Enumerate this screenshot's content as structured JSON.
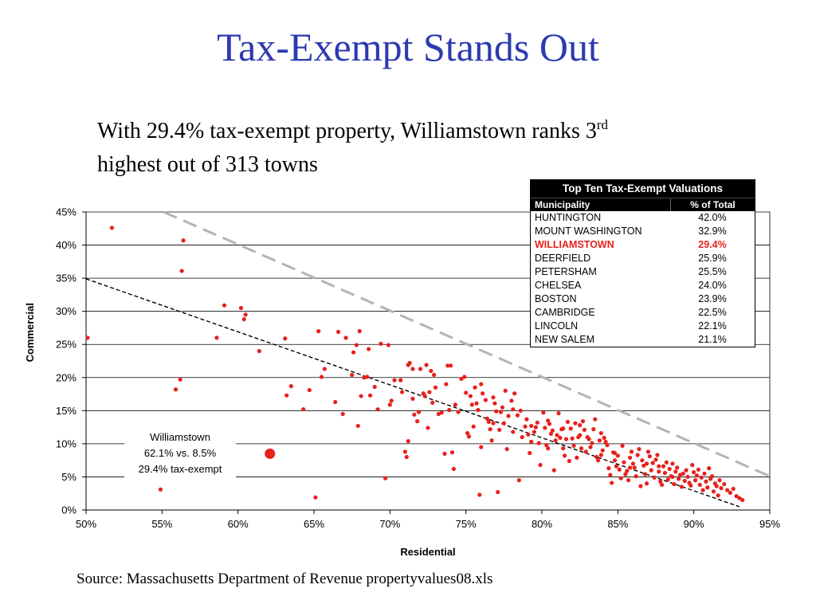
{
  "slide": {
    "title": "Tax-Exempt Stands Out",
    "subtitle_line1": "With 29.4% tax-exempt property, Williamstown ranks 3",
    "subtitle_sup": "rd",
    "subtitle_line2": "highest out of 313 towns",
    "source": "Source: Massachusetts Department of Revenue propertyvalues08.xls"
  },
  "table": {
    "title": "Top Ten Tax-Exempt Valuations",
    "headers": [
      "Municipality",
      "% of Total"
    ],
    "rows": [
      {
        "name": "HUNTINGTON",
        "value": "42.0%"
      },
      {
        "name": "MOUNT WASHINGTON",
        "value": "32.9%"
      },
      {
        "name": "WILLIAMSTOWN",
        "value": "29.4%",
        "highlight": true
      },
      {
        "name": "DEERFIELD",
        "value": "25.9%"
      },
      {
        "name": "PETERSHAM",
        "value": "25.5%"
      },
      {
        "name": "CHELSEA",
        "value": "24.0%"
      },
      {
        "name": "BOSTON",
        "value": "23.9%"
      },
      {
        "name": "CAMBRIDGE",
        "value": "22.5%"
      },
      {
        "name": "LINCOLN",
        "value": "22.1%"
      },
      {
        "name": "NEW SALEM",
        "value": "21.1%"
      }
    ]
  },
  "chart_data": {
    "type": "scatter",
    "xlabel": "Residential",
    "ylabel": "Commercial",
    "xlim": [
      0.5,
      0.95
    ],
    "ylim": [
      0,
      0.45
    ],
    "x_ticks": [
      "50%",
      "55%",
      "60%",
      "65%",
      "70%",
      "75%",
      "80%",
      "85%",
      "90%",
      "95%"
    ],
    "y_ticks": [
      "0%",
      "5%",
      "10%",
      "15%",
      "20%",
      "25%",
      "30%",
      "35%",
      "40%",
      "45%"
    ],
    "grid": "horizontal",
    "point_color": "#e8201c",
    "lines": [
      {
        "style": "dashed-black",
        "from": [
          0.5,
          0.349
        ],
        "to": [
          0.93,
          0.005
        ]
      },
      {
        "style": "dashed-gray",
        "from": [
          0.551,
          0.45
        ],
        "to": [
          0.951,
          0.05
        ]
      }
    ],
    "highlight": {
      "x": 0.621,
      "y": 0.085,
      "label_lines": [
        "Williamstown",
        "62.1% vs. 8.5%",
        "29.4% tax-exempt"
      ]
    },
    "points": [
      [
        0.501,
        0.26
      ],
      [
        0.517,
        0.426
      ],
      [
        0.549,
        0.031
      ],
      [
        0.559,
        0.182
      ],
      [
        0.562,
        0.197
      ],
      [
        0.563,
        0.361
      ],
      [
        0.564,
        0.407
      ],
      [
        0.586,
        0.26
      ],
      [
        0.591,
        0.309
      ],
      [
        0.602,
        0.305
      ],
      [
        0.604,
        0.288
      ],
      [
        0.605,
        0.295
      ],
      [
        0.614,
        0.24
      ],
      [
        0.631,
        0.259
      ],
      [
        0.632,
        0.173
      ],
      [
        0.635,
        0.187
      ],
      [
        0.643,
        0.152
      ],
      [
        0.647,
        0.181
      ],
      [
        0.651,
        0.019
      ],
      [
        0.653,
        0.27
      ],
      [
        0.655,
        0.201
      ],
      [
        0.657,
        0.213
      ],
      [
        0.666,
        0.269
      ],
      [
        0.669,
        0.145
      ],
      [
        0.671,
        0.26
      ],
      [
        0.676,
        0.238
      ],
      [
        0.678,
        0.249
      ],
      [
        0.679,
        0.127
      ],
      [
        0.68,
        0.27
      ],
      [
        0.681,
        0.172
      ],
      [
        0.683,
        0.2
      ],
      [
        0.685,
        0.201
      ],
      [
        0.686,
        0.243
      ],
      [
        0.687,
        0.173
      ],
      [
        0.692,
        0.152
      ],
      [
        0.694,
        0.251
      ],
      [
        0.697,
        0.048
      ],
      [
        0.699,
        0.249
      ],
      [
        0.701,
        0.165
      ],
      [
        0.703,
        0.196
      ],
      [
        0.707,
        0.196
      ],
      [
        0.708,
        0.178
      ],
      [
        0.71,
        0.088
      ],
      [
        0.711,
        0.08
      ],
      [
        0.712,
        0.104
      ],
      [
        0.712,
        0.219
      ],
      [
        0.713,
        0.222
      ],
      [
        0.715,
        0.213
      ],
      [
        0.716,
        0.144
      ],
      [
        0.718,
        0.134
      ],
      [
        0.719,
        0.148
      ],
      [
        0.72,
        0.213
      ],
      [
        0.722,
        0.176
      ],
      [
        0.723,
        0.172
      ],
      [
        0.724,
        0.219
      ],
      [
        0.725,
        0.124
      ],
      [
        0.726,
        0.178
      ],
      [
        0.727,
        0.21
      ],
      [
        0.729,
        0.204
      ],
      [
        0.73,
        0.185
      ],
      [
        0.732,
        0.145
      ],
      [
        0.734,
        0.147
      ],
      [
        0.736,
        0.085
      ],
      [
        0.737,
        0.19
      ],
      [
        0.738,
        0.218
      ],
      [
        0.74,
        0.218
      ],
      [
        0.741,
        0.087
      ],
      [
        0.742,
        0.062
      ],
      [
        0.743,
        0.159
      ],
      [
        0.745,
        0.148
      ],
      [
        0.747,
        0.198
      ],
      [
        0.749,
        0.201
      ],
      [
        0.75,
        0.177
      ],
      [
        0.751,
        0.116
      ],
      [
        0.752,
        0.111
      ],
      [
        0.754,
        0.159
      ],
      [
        0.755,
        0.126
      ],
      [
        0.756,
        0.185
      ],
      [
        0.757,
        0.161
      ],
      [
        0.758,
        0.151
      ],
      [
        0.759,
        0.023
      ],
      [
        0.76,
        0.095
      ],
      [
        0.76,
        0.19
      ],
      [
        0.761,
        0.176
      ],
      [
        0.763,
        0.166
      ],
      [
        0.764,
        0.138
      ],
      [
        0.765,
        0.133
      ],
      [
        0.766,
        0.122
      ],
      [
        0.767,
        0.105
      ],
      [
        0.768,
        0.17
      ],
      [
        0.769,
        0.161
      ],
      [
        0.77,
        0.149
      ],
      [
        0.771,
        0.027
      ],
      [
        0.772,
        0.121
      ],
      [
        0.773,
        0.148
      ],
      [
        0.774,
        0.155
      ],
      [
        0.775,
        0.131
      ],
      [
        0.776,
        0.18
      ],
      [
        0.777,
        0.092
      ],
      [
        0.778,
        0.142
      ],
      [
        0.78,
        0.165
      ],
      [
        0.781,
        0.152
      ],
      [
        0.782,
        0.176
      ],
      [
        0.784,
        0.143
      ],
      [
        0.785,
        0.045
      ],
      [
        0.786,
        0.15
      ],
      [
        0.787,
        0.11
      ],
      [
        0.789,
        0.126
      ],
      [
        0.79,
        0.137
      ],
      [
        0.791,
        0.114
      ],
      [
        0.792,
        0.086
      ],
      [
        0.793,
        0.103
      ],
      [
        0.795,
        0.118
      ],
      [
        0.796,
        0.125
      ],
      [
        0.797,
        0.132
      ],
      [
        0.798,
        0.101
      ],
      [
        0.799,
        0.068
      ],
      [
        0.801,
        0.147
      ],
      [
        0.802,
        0.124
      ],
      [
        0.803,
        0.098
      ],
      [
        0.804,
        0.093
      ],
      [
        0.805,
        0.13
      ],
      [
        0.806,
        0.115
      ],
      [
        0.807,
        0.12
      ],
      [
        0.808,
        0.06
      ],
      [
        0.809,
        0.105
      ],
      [
        0.81,
        0.113
      ],
      [
        0.811,
        0.146
      ],
      [
        0.812,
        0.109
      ],
      [
        0.813,
        0.122
      ],
      [
        0.814,
        0.123
      ],
      [
        0.815,
        0.082
      ],
      [
        0.816,
        0.107
      ],
      [
        0.817,
        0.133
      ],
      [
        0.818,
        0.074
      ],
      [
        0.819,
        0.123
      ],
      [
        0.82,
        0.108
      ],
      [
        0.821,
        0.097
      ],
      [
        0.822,
        0.131
      ],
      [
        0.823,
        0.079
      ],
      [
        0.824,
        0.11
      ],
      [
        0.825,
        0.113
      ],
      [
        0.826,
        0.093
      ],
      [
        0.827,
        0.134
      ],
      [
        0.828,
        0.121
      ],
      [
        0.829,
        0.088
      ],
      [
        0.83,
        0.11
      ],
      [
        0.831,
        0.107
      ],
      [
        0.832,
        0.095
      ],
      [
        0.833,
        0.101
      ],
      [
        0.834,
        0.122
      ],
      [
        0.835,
        0.137
      ],
      [
        0.836,
        0.08
      ],
      [
        0.837,
        0.075
      ],
      [
        0.838,
        0.105
      ],
      [
        0.839,
        0.116
      ],
      [
        0.84,
        0.09
      ],
      [
        0.841,
        0.109
      ],
      [
        0.842,
        0.103
      ],
      [
        0.843,
        0.098
      ],
      [
        0.844,
        0.063
      ],
      [
        0.845,
        0.053
      ],
      [
        0.846,
        0.041
      ],
      [
        0.847,
        0.087
      ],
      [
        0.848,
        0.075
      ],
      [
        0.849,
        0.066
      ],
      [
        0.85,
        0.082
      ],
      [
        0.851,
        0.061
      ],
      [
        0.852,
        0.048
      ],
      [
        0.853,
        0.097
      ],
      [
        0.854,
        0.072
      ],
      [
        0.855,
        0.054
      ],
      [
        0.856,
        0.059
      ],
      [
        0.857,
        0.045
      ],
      [
        0.858,
        0.079
      ],
      [
        0.859,
        0.088
      ],
      [
        0.86,
        0.07
      ],
      [
        0.861,
        0.064
      ],
      [
        0.862,
        0.051
      ],
      [
        0.863,
        0.083
      ],
      [
        0.864,
        0.092
      ],
      [
        0.865,
        0.036
      ],
      [
        0.866,
        0.075
      ],
      [
        0.867,
        0.067
      ],
      [
        0.868,
        0.054
      ],
      [
        0.869,
        0.04
      ],
      [
        0.87,
        0.088
      ],
      [
        0.871,
        0.081
      ],
      [
        0.872,
        0.06
      ],
      [
        0.873,
        0.071
      ],
      [
        0.874,
        0.049
      ],
      [
        0.875,
        0.076
      ],
      [
        0.876,
        0.083
      ],
      [
        0.877,
        0.058
      ],
      [
        0.878,
        0.043
      ],
      [
        0.879,
        0.038
      ],
      [
        0.88,
        0.066
      ],
      [
        0.881,
        0.056
      ],
      [
        0.882,
        0.072
      ],
      [
        0.883,
        0.046
      ],
      [
        0.884,
        0.062
      ],
      [
        0.885,
        0.051
      ],
      [
        0.886,
        0.07
      ],
      [
        0.887,
        0.039
      ],
      [
        0.888,
        0.058
      ],
      [
        0.889,
        0.064
      ],
      [
        0.89,
        0.047
      ],
      [
        0.891,
        0.053
      ],
      [
        0.892,
        0.035
      ],
      [
        0.893,
        0.055
      ],
      [
        0.894,
        0.044
      ],
      [
        0.895,
        0.06
      ],
      [
        0.896,
        0.05
      ],
      [
        0.897,
        0.041
      ],
      [
        0.898,
        0.037
      ],
      [
        0.899,
        0.068
      ],
      [
        0.9,
        0.057
      ],
      [
        0.901,
        0.045
      ],
      [
        0.902,
        0.052
      ],
      [
        0.903,
        0.061
      ],
      [
        0.904,
        0.038
      ],
      [
        0.905,
        0.049
      ],
      [
        0.906,
        0.03
      ],
      [
        0.907,
        0.055
      ],
      [
        0.908,
        0.043
      ],
      [
        0.909,
        0.034
      ],
      [
        0.91,
        0.063
      ],
      [
        0.911,
        0.047
      ],
      [
        0.912,
        0.051
      ],
      [
        0.913,
        0.028
      ],
      [
        0.914,
        0.04
      ],
      [
        0.915,
        0.036
      ],
      [
        0.916,
        0.022
      ],
      [
        0.917,
        0.045
      ],
      [
        0.918,
        0.033
      ],
      [
        0.92,
        0.039
      ],
      [
        0.922,
        0.03
      ],
      [
        0.924,
        0.026
      ],
      [
        0.926,
        0.032
      ],
      [
        0.928,
        0.021
      ],
      [
        0.93,
        0.018
      ],
      [
        0.932,
        0.015
      ],
      [
        0.869,
        0.07
      ],
      [
        0.877,
        0.066
      ],
      [
        0.886,
        0.05
      ],
      [
        0.858,
        0.064
      ],
      [
        0.848,
        0.086
      ],
      [
        0.839,
        0.083
      ],
      [
        0.825,
        0.128
      ],
      [
        0.814,
        0.093
      ],
      [
        0.804,
        0.135
      ],
      [
        0.793,
        0.127
      ],
      [
        0.781,
        0.118
      ],
      [
        0.768,
        0.131
      ],
      [
        0.753,
        0.172
      ],
      [
        0.739,
        0.151
      ],
      [
        0.728,
        0.162
      ],
      [
        0.715,
        0.168
      ],
      [
        0.7,
        0.159
      ],
      [
        0.69,
        0.186
      ],
      [
        0.675,
        0.204
      ],
      [
        0.664,
        0.163
      ]
    ]
  }
}
